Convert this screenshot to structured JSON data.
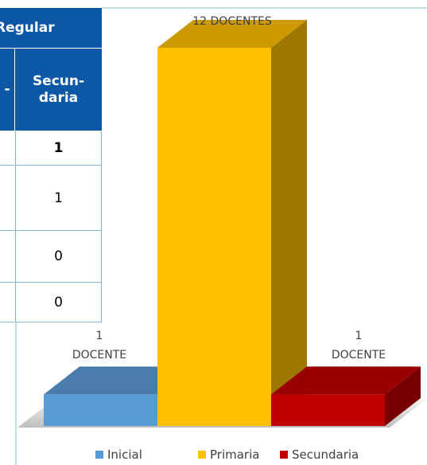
{
  "table": {
    "title": "Regular",
    "header": [
      "-",
      "Secun-\ndaria"
    ],
    "rows": [
      1,
      1,
      0,
      0
    ]
  },
  "chart_data": {
    "type": "bar3d",
    "categories": [
      "Inicial",
      "Primaria",
      "Secundaria"
    ],
    "values": [
      1,
      12,
      1
    ],
    "value_labels": [
      "1 DOCENTE",
      "12 DOCENTES",
      "1 DOCENTE"
    ],
    "colors": [
      "#5b9bd5",
      "#ffc000",
      "#c00000"
    ],
    "legend": "bottom"
  }
}
